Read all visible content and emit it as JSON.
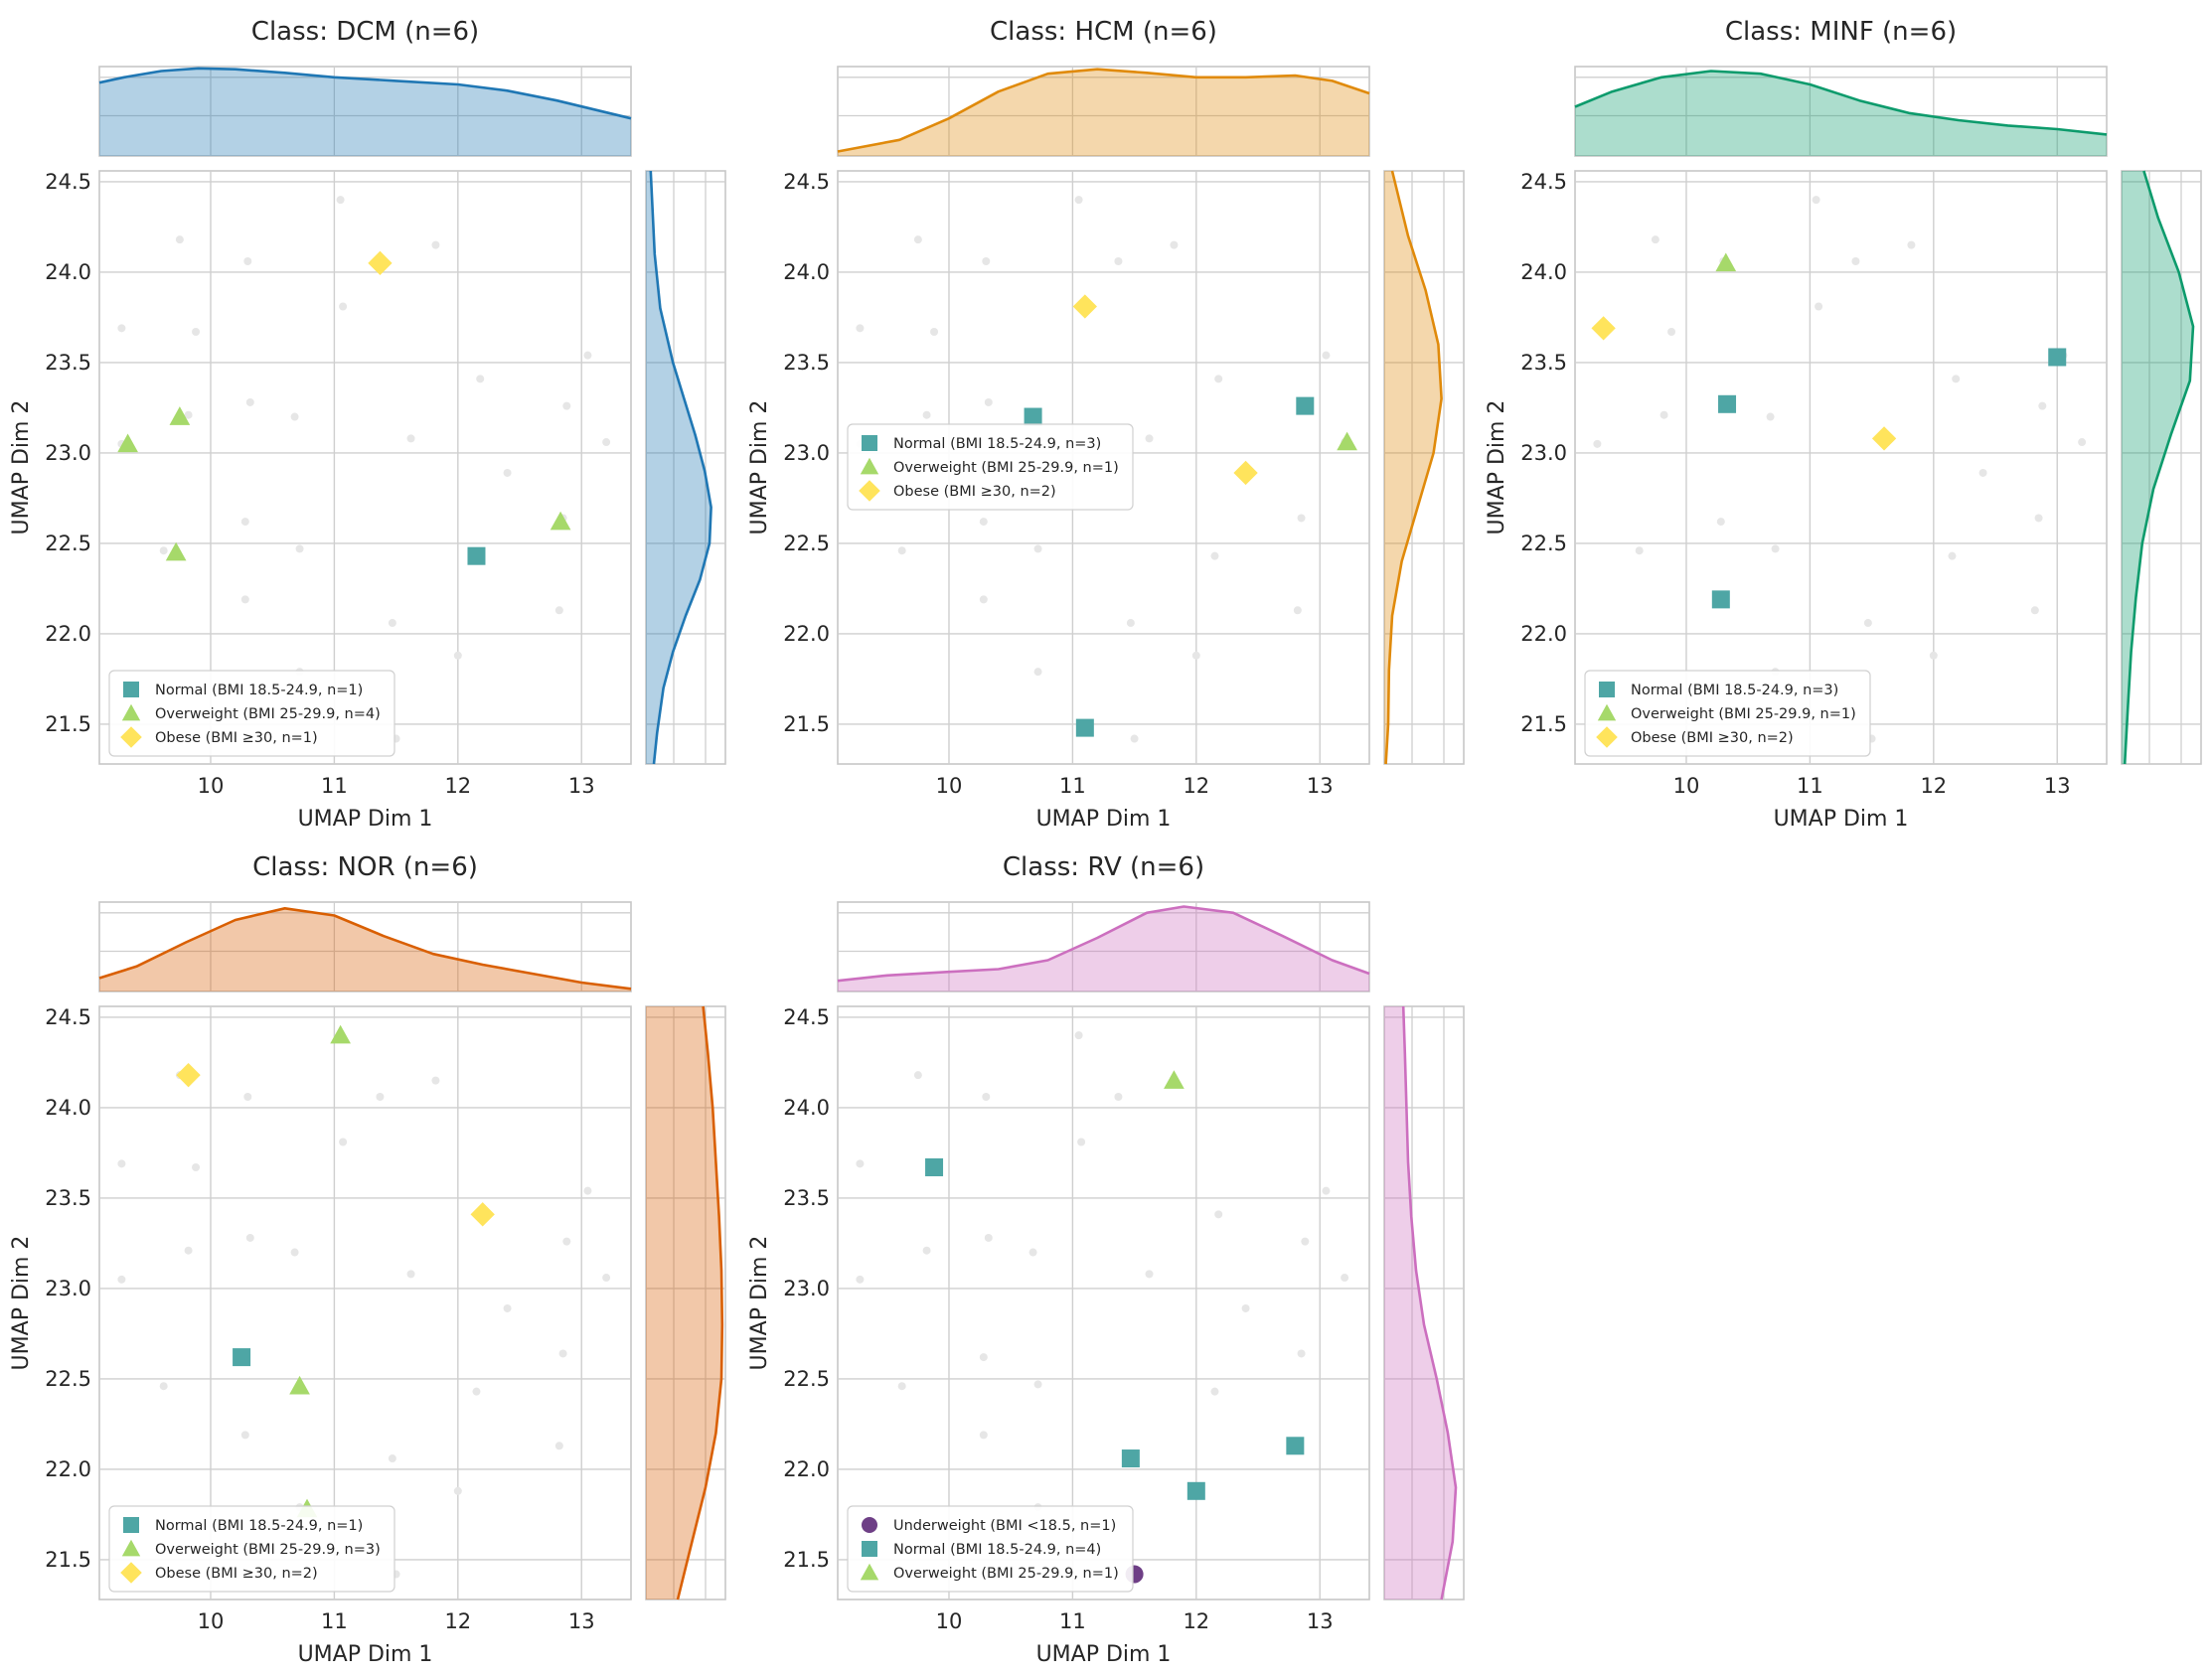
{
  "figure": {
    "colors": {
      "background": "#ffffff",
      "grid": "#cfcfcf",
      "frame": "#c7c7c7",
      "text": "#262626",
      "background_points": "#e6e6e6",
      "normal": "#4ea6a5",
      "overweight": "#a6d96a",
      "obese": "#ffe45c",
      "underweight": "#6e3f86"
    },
    "marker_shapes": {
      "Underweight": "circle",
      "Normal": "square",
      "Overweight": "triangle",
      "Obese": "diamond"
    }
  },
  "chart_data": [
    {
      "type": "scatter",
      "title": "Class: DCM (n=6)",
      "xlabel": "UMAP Dim 1",
      "ylabel": "UMAP Dim 2",
      "xlim": [
        9.1,
        13.4
      ],
      "ylim": [
        21.28,
        24.56
      ],
      "xticks": [
        10,
        11,
        12,
        13
      ],
      "yticks": [
        21.5,
        22.0,
        22.5,
        23.0,
        23.5,
        24.0,
        24.5
      ],
      "grid": true,
      "legend_position": "lower-left",
      "marginal_color": "#1f77b4",
      "marginal_x": [
        [
          9.1,
          0.82
        ],
        [
          9.3,
          0.88
        ],
        [
          9.6,
          0.95
        ],
        [
          9.9,
          0.98
        ],
        [
          10.2,
          0.97
        ],
        [
          10.6,
          0.93
        ],
        [
          11.0,
          0.88
        ],
        [
          11.5,
          0.84
        ],
        [
          12.0,
          0.8
        ],
        [
          12.4,
          0.73
        ],
        [
          12.8,
          0.62
        ],
        [
          13.1,
          0.52
        ],
        [
          13.4,
          0.42
        ]
      ],
      "marginal_y": [
        [
          21.28,
          0.1
        ],
        [
          21.45,
          0.14
        ],
        [
          21.7,
          0.22
        ],
        [
          21.9,
          0.34
        ],
        [
          22.1,
          0.5
        ],
        [
          22.3,
          0.68
        ],
        [
          22.5,
          0.8
        ],
        [
          22.7,
          0.82
        ],
        [
          22.9,
          0.74
        ],
        [
          23.1,
          0.62
        ],
        [
          23.3,
          0.48
        ],
        [
          23.5,
          0.34
        ],
        [
          23.8,
          0.18
        ],
        [
          24.1,
          0.11
        ],
        [
          24.56,
          0.06
        ]
      ],
      "series": [
        {
          "name": "Normal (BMI 18.5-24.9, n=1)",
          "group": "Normal",
          "points": [
            [
              12.15,
              22.43
            ]
          ]
        },
        {
          "name": "Overweight (BMI 25-29.9, n=4)",
          "group": "Overweight",
          "points": [
            [
              9.33,
              23.05
            ],
            [
              9.75,
              23.2
            ],
            [
              9.72,
              22.45
            ],
            [
              12.83,
              22.62
            ]
          ]
        },
        {
          "name": "Obese (BMI ≥30, n=1)",
          "group": "Obese",
          "points": [
            [
              11.37,
              24.05
            ]
          ]
        }
      ]
    },
    {
      "type": "scatter",
      "title": "Class: HCM (n=6)",
      "xlabel": "UMAP Dim 1",
      "ylabel": "UMAP Dim 2",
      "xlim": [
        9.1,
        13.4
      ],
      "ylim": [
        21.28,
        24.56
      ],
      "xticks": [
        10,
        11,
        12,
        13
      ],
      "yticks": [
        21.5,
        22.0,
        22.5,
        23.0,
        23.5,
        24.0,
        24.5
      ],
      "grid": true,
      "legend_position": "center-left",
      "marginal_color": "#e08a0b",
      "marginal_x": [
        [
          9.1,
          0.05
        ],
        [
          9.6,
          0.18
        ],
        [
          10.0,
          0.42
        ],
        [
          10.4,
          0.72
        ],
        [
          10.8,
          0.92
        ],
        [
          11.2,
          0.97
        ],
        [
          11.6,
          0.93
        ],
        [
          12.0,
          0.88
        ],
        [
          12.4,
          0.88
        ],
        [
          12.8,
          0.9
        ],
        [
          13.1,
          0.84
        ],
        [
          13.4,
          0.7
        ]
      ],
      "marginal_y": [
        [
          21.28,
          0.02
        ],
        [
          21.5,
          0.05
        ],
        [
          21.8,
          0.06
        ],
        [
          22.1,
          0.1
        ],
        [
          22.4,
          0.22
        ],
        [
          22.7,
          0.42
        ],
        [
          23.0,
          0.62
        ],
        [
          23.3,
          0.72
        ],
        [
          23.6,
          0.68
        ],
        [
          23.9,
          0.52
        ],
        [
          24.2,
          0.3
        ],
        [
          24.56,
          0.1
        ]
      ],
      "series": [
        {
          "name": "Normal (BMI 18.5-24.9, n=3)",
          "group": "Normal",
          "points": [
            [
              10.68,
              23.2
            ],
            [
              12.88,
              23.26
            ],
            [
              11.1,
              21.48
            ]
          ]
        },
        {
          "name": "Overweight (BMI 25-29.9, n=1)",
          "group": "Overweight",
          "points": [
            [
              13.22,
              23.06
            ]
          ]
        },
        {
          "name": "Obese (BMI ≥30, n=2)",
          "group": "Obese",
          "points": [
            [
              11.1,
              23.81
            ],
            [
              12.4,
              22.89
            ]
          ]
        }
      ]
    },
    {
      "type": "scatter",
      "title": "Class: MINF (n=6)",
      "xlabel": "UMAP Dim 1",
      "ylabel": "UMAP Dim 2",
      "xlim": [
        9.1,
        13.4
      ],
      "ylim": [
        21.28,
        24.56
      ],
      "xticks": [
        10,
        11,
        12,
        13
      ],
      "yticks": [
        21.5,
        22.0,
        22.5,
        23.0,
        23.5,
        24.0,
        24.5
      ],
      "grid": true,
      "legend_position": "lower-left",
      "marginal_color": "#0d9b6c",
      "marginal_x": [
        [
          9.1,
          0.55
        ],
        [
          9.4,
          0.72
        ],
        [
          9.8,
          0.88
        ],
        [
          10.2,
          0.95
        ],
        [
          10.6,
          0.92
        ],
        [
          11.0,
          0.8
        ],
        [
          11.4,
          0.62
        ],
        [
          11.8,
          0.48
        ],
        [
          12.2,
          0.4
        ],
        [
          12.6,
          0.34
        ],
        [
          13.0,
          0.3
        ],
        [
          13.4,
          0.24
        ]
      ],
      "marginal_y": [
        [
          21.28,
          0.04
        ],
        [
          21.6,
          0.08
        ],
        [
          21.9,
          0.12
        ],
        [
          22.2,
          0.18
        ],
        [
          22.5,
          0.26
        ],
        [
          22.8,
          0.4
        ],
        [
          23.1,
          0.62
        ],
        [
          23.4,
          0.86
        ],
        [
          23.7,
          0.9
        ],
        [
          24.0,
          0.72
        ],
        [
          24.3,
          0.46
        ],
        [
          24.56,
          0.28
        ]
      ],
      "series": [
        {
          "name": "Normal (BMI 18.5-24.9, n=3)",
          "group": "Normal",
          "points": [
            [
              10.33,
              23.27
            ],
            [
              10.28,
              22.19
            ],
            [
              13.0,
              23.53
            ]
          ]
        },
        {
          "name": "Overweight (BMI 25-29.9, n=1)",
          "group": "Overweight",
          "points": [
            [
              10.32,
              24.05
            ]
          ]
        },
        {
          "name": "Obese (BMI ≥30, n=2)",
          "group": "Obese",
          "points": [
            [
              9.33,
              23.69
            ],
            [
              11.6,
              23.08
            ]
          ]
        }
      ]
    },
    {
      "type": "scatter",
      "title": "Class: NOR (n=6)",
      "xlabel": "UMAP Dim 1",
      "ylabel": "UMAP Dim 2",
      "xlim": [
        9.1,
        13.4
      ],
      "ylim": [
        21.28,
        24.56
      ],
      "xticks": [
        10,
        11,
        12,
        13
      ],
      "yticks": [
        21.5,
        22.0,
        22.5,
        23.0,
        23.5,
        24.0,
        24.5
      ],
      "grid": true,
      "legend_position": "lower-left",
      "marginal_color": "#d95f02",
      "marginal_x": [
        [
          9.1,
          0.15
        ],
        [
          9.4,
          0.28
        ],
        [
          9.8,
          0.55
        ],
        [
          10.2,
          0.8
        ],
        [
          10.6,
          0.93
        ],
        [
          11.0,
          0.85
        ],
        [
          11.4,
          0.62
        ],
        [
          11.8,
          0.42
        ],
        [
          12.2,
          0.3
        ],
        [
          12.6,
          0.2
        ],
        [
          13.0,
          0.1
        ],
        [
          13.4,
          0.03
        ]
      ],
      "marginal_y": [
        [
          21.28,
          0.4
        ],
        [
          21.6,
          0.58
        ],
        [
          21.9,
          0.75
        ],
        [
          22.2,
          0.88
        ],
        [
          22.5,
          0.95
        ],
        [
          22.8,
          0.96
        ],
        [
          23.1,
          0.95
        ],
        [
          23.4,
          0.92
        ],
        [
          23.7,
          0.88
        ],
        [
          24.0,
          0.84
        ],
        [
          24.3,
          0.78
        ],
        [
          24.56,
          0.72
        ]
      ],
      "series": [
        {
          "name": "Normal (BMI 18.5-24.9, n=1)",
          "group": "Normal",
          "points": [
            [
              10.25,
              22.62
            ]
          ]
        },
        {
          "name": "Overweight (BMI 25-29.9, n=3)",
          "group": "Overweight",
          "points": [
            [
              11.05,
              24.4
            ],
            [
              10.72,
              22.46
            ],
            [
              10.78,
              21.78
            ]
          ]
        },
        {
          "name": "Obese (BMI ≥30, n=2)",
          "group": "Obese",
          "points": [
            [
              9.82,
              24.18
            ],
            [
              12.2,
              23.41
            ]
          ]
        }
      ]
    },
    {
      "type": "scatter",
      "title": "Class: RV (n=6)",
      "xlabel": "UMAP Dim 1",
      "ylabel": "UMAP Dim 2",
      "xlim": [
        9.1,
        13.4
      ],
      "ylim": [
        21.28,
        24.56
      ],
      "xticks": [
        10,
        11,
        12,
        13
      ],
      "yticks": [
        21.5,
        22.0,
        22.5,
        23.0,
        23.5,
        24.0,
        24.5
      ],
      "grid": true,
      "legend_position": "lower-left",
      "marginal_color": "#cc6fbf",
      "marginal_x": [
        [
          9.1,
          0.12
        ],
        [
          9.5,
          0.18
        ],
        [
          10.0,
          0.22
        ],
        [
          10.4,
          0.25
        ],
        [
          10.8,
          0.35
        ],
        [
          11.2,
          0.6
        ],
        [
          11.6,
          0.88
        ],
        [
          11.9,
          0.95
        ],
        [
          12.3,
          0.88
        ],
        [
          12.7,
          0.62
        ],
        [
          13.1,
          0.35
        ],
        [
          13.4,
          0.2
        ]
      ],
      "marginal_y": [
        [
          21.28,
          0.72
        ],
        [
          21.6,
          0.86
        ],
        [
          21.9,
          0.9
        ],
        [
          22.2,
          0.8
        ],
        [
          22.5,
          0.66
        ],
        [
          22.8,
          0.5
        ],
        [
          23.1,
          0.4
        ],
        [
          23.4,
          0.34
        ],
        [
          23.7,
          0.3
        ],
        [
          24.0,
          0.28
        ],
        [
          24.3,
          0.26
        ],
        [
          24.56,
          0.24
        ]
      ],
      "series": [
        {
          "name": "Underweight (BMI <18.5, n=1)",
          "group": "Underweight",
          "points": [
            [
              11.5,
              21.42
            ]
          ]
        },
        {
          "name": "Normal (BMI 18.5-24.9, n=4)",
          "group": "Normal",
          "points": [
            [
              9.88,
              23.67
            ],
            [
              11.47,
              22.06
            ],
            [
              12.0,
              21.88
            ],
            [
              12.8,
              22.13
            ]
          ]
        },
        {
          "name": "Overweight (BMI 25-29.9, n=1)",
          "group": "Overweight",
          "points": [
            [
              11.82,
              24.15
            ]
          ]
        }
      ]
    }
  ],
  "background_points": [
    [
      9.28,
      23.69
    ],
    [
      9.28,
      23.05
    ],
    [
      9.62,
      22.46
    ],
    [
      9.75,
      24.18
    ],
    [
      9.82,
      23.21
    ],
    [
      9.88,
      23.67
    ],
    [
      10.28,
      22.19
    ],
    [
      10.3,
      24.06
    ],
    [
      10.32,
      23.28
    ],
    [
      10.28,
      22.62
    ],
    [
      10.68,
      23.2
    ],
    [
      10.72,
      22.47
    ],
    [
      10.72,
      21.79
    ],
    [
      11.05,
      24.4
    ],
    [
      11.07,
      23.81
    ],
    [
      11.37,
      24.06
    ],
    [
      11.47,
      22.06
    ],
    [
      11.5,
      21.42
    ],
    [
      11.62,
      23.08
    ],
    [
      11.82,
      24.15
    ],
    [
      12.0,
      21.88
    ],
    [
      12.18,
      23.41
    ],
    [
      12.15,
      22.43
    ],
    [
      12.4,
      22.89
    ],
    [
      12.82,
      22.13
    ],
    [
      12.88,
      23.26
    ],
    [
      13.2,
      23.06
    ],
    [
      13.05,
      23.54
    ],
    [
      12.85,
      22.64
    ]
  ]
}
